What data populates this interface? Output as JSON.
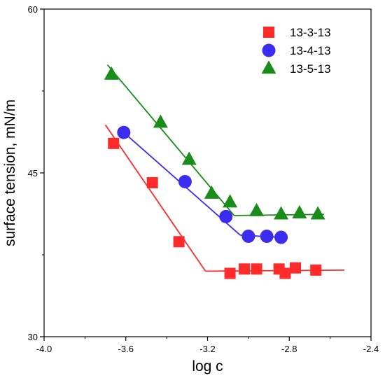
{
  "chart_data": {
    "type": "scatter",
    "title": "",
    "xlabel": "log c",
    "ylabel": "surface tension, mN/m",
    "xlim": [
      -4.0,
      -2.4
    ],
    "ylim": [
      30,
      60
    ],
    "x_ticks": [
      "-4.0",
      "-3.6",
      "-3.2",
      "-2.8",
      "-2.4"
    ],
    "x_tick_values": [
      -4.0,
      -3.6,
      -3.2,
      -2.8,
      -2.4
    ],
    "y_ticks": [
      "30",
      "45",
      "60"
    ],
    "y_tick_values": [
      30,
      45,
      60
    ],
    "grid": false,
    "legend_position": "top-right",
    "series": [
      {
        "name": "13-3-13",
        "marker": "square",
        "color": "#ff2a2a",
        "points": [
          {
            "x": -3.66,
            "y": 47.7
          },
          {
            "x": -3.47,
            "y": 44.1
          },
          {
            "x": -3.34,
            "y": 38.7
          },
          {
            "x": -3.09,
            "y": 35.8
          },
          {
            "x": -3.02,
            "y": 36.2
          },
          {
            "x": -2.96,
            "y": 36.2
          },
          {
            "x": -2.85,
            "y": 36.2
          },
          {
            "x": -2.82,
            "y": 35.8
          },
          {
            "x": -2.77,
            "y": 36.3
          },
          {
            "x": -2.67,
            "y": 36.1
          }
        ],
        "fit_lines": [
          {
            "x": [
              -3.7,
              -3.21
            ],
            "y": [
              49.4,
              36.0
            ]
          },
          {
            "x": [
              -3.21,
              -2.53
            ],
            "y": [
              36.0,
              36.1
            ]
          }
        ]
      },
      {
        "name": "13-4-13",
        "marker": "circle",
        "color": "#3b2cf0",
        "points": [
          {
            "x": -3.61,
            "y": 48.7
          },
          {
            "x": -3.31,
            "y": 44.2
          },
          {
            "x": -3.11,
            "y": 41.0
          },
          {
            "x": -3.0,
            "y": 39.2
          },
          {
            "x": -2.91,
            "y": 39.2
          },
          {
            "x": -2.84,
            "y": 39.1
          }
        ],
        "fit_lines": [
          {
            "x": [
              -3.61,
              -3.04
            ],
            "y": [
              48.7,
              39.3
            ]
          },
          {
            "x": [
              -3.04,
              -2.84
            ],
            "y": [
              39.3,
              39.1
            ]
          }
        ]
      },
      {
        "name": "13-5-13",
        "marker": "triangle",
        "color": "#1a8c1a",
        "points": [
          {
            "x": -3.67,
            "y": 54.0
          },
          {
            "x": -3.43,
            "y": 49.6
          },
          {
            "x": -3.29,
            "y": 46.2
          },
          {
            "x": -3.18,
            "y": 43.1
          },
          {
            "x": -3.09,
            "y": 42.3
          },
          {
            "x": -2.96,
            "y": 41.5
          },
          {
            "x": -2.84,
            "y": 41.2
          },
          {
            "x": -2.75,
            "y": 41.3
          },
          {
            "x": -2.66,
            "y": 41.2
          }
        ],
        "fit_lines": [
          {
            "x": [
              -3.69,
              -3.07
            ],
            "y": [
              54.9,
              41.1
            ]
          },
          {
            "x": [
              -3.07,
              -2.63
            ],
            "y": [
              41.1,
              41.2
            ]
          }
        ]
      }
    ]
  }
}
